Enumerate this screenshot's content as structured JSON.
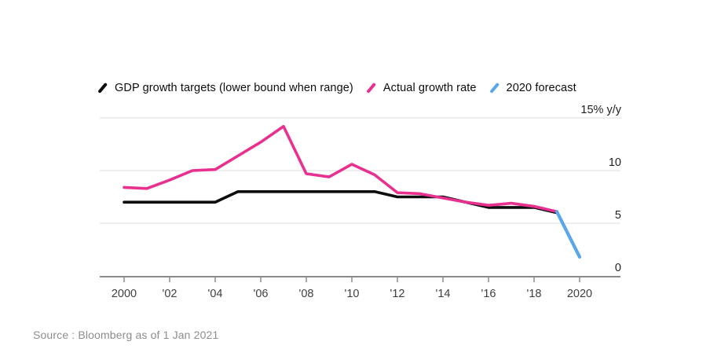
{
  "page": {
    "background": "#ffffff"
  },
  "legend": {
    "items": [
      {
        "key": "targets",
        "label": "GDP growth targets (lower bound when range)",
        "color": "#0d0d0d"
      },
      {
        "key": "actual",
        "label": "Actual growth rate",
        "color": "#e8308f"
      },
      {
        "key": "forecast",
        "label": "2020 forecast",
        "color": "#57a7ea"
      }
    ]
  },
  "chart_data": {
    "type": "line",
    "grid": "horizontal",
    "legend_position": "top",
    "xlim": [
      2000,
      2020
    ],
    "ylim": [
      0,
      15
    ],
    "ylabel": "% y/y",
    "y_ticks": [
      {
        "value": 15,
        "label": "15% y/y"
      },
      {
        "value": 10,
        "label": "10"
      },
      {
        "value": 5,
        "label": "5"
      },
      {
        "value": 0,
        "label": "0"
      }
    ],
    "x_ticks": [
      {
        "year": 2000,
        "label": "2000"
      },
      {
        "year": 2002,
        "label": "'02"
      },
      {
        "year": 2004,
        "label": "'04"
      },
      {
        "year": 2006,
        "label": "'06"
      },
      {
        "year": 2008,
        "label": "'08"
      },
      {
        "year": 2010,
        "label": "'10"
      },
      {
        "year": 2012,
        "label": "'12"
      },
      {
        "year": 2014,
        "label": "'14"
      },
      {
        "year": 2016,
        "label": "'16"
      },
      {
        "year": 2018,
        "label": "'18"
      },
      {
        "year": 2020,
        "label": "2020"
      }
    ],
    "series": [
      {
        "key": "targets",
        "name": "GDP growth targets (lower bound when range)",
        "color": "#0d0d0d",
        "width": 3.6,
        "x": [
          2000,
          2001,
          2002,
          2003,
          2004,
          2005,
          2006,
          2007,
          2008,
          2009,
          2010,
          2011,
          2012,
          2013,
          2014,
          2015,
          2016,
          2017,
          2018,
          2019
        ],
        "values": [
          7,
          7,
          7,
          7,
          7,
          8,
          8,
          8,
          8,
          8,
          8,
          8,
          7.5,
          7.5,
          7.5,
          7,
          6.5,
          6.5,
          6.5,
          6
        ]
      },
      {
        "key": "actual",
        "name": "Actual growth rate",
        "color": "#e8308f",
        "width": 3.6,
        "x": [
          2000,
          2001,
          2002,
          2003,
          2004,
          2005,
          2006,
          2007,
          2008,
          2009,
          2010,
          2011,
          2012,
          2013,
          2014,
          2015,
          2016,
          2017,
          2018,
          2019
        ],
        "values": [
          8.4,
          8.3,
          9.1,
          10.0,
          10.1,
          11.4,
          12.7,
          14.2,
          9.7,
          9.4,
          10.6,
          9.6,
          7.9,
          7.8,
          7.4,
          7.0,
          6.7,
          6.9,
          6.6,
          6.1
        ]
      },
      {
        "key": "forecast",
        "name": "2020 forecast",
        "color": "#57a7ea",
        "width": 4.2,
        "x": [
          2019,
          2020
        ],
        "values": [
          6.1,
          1.8
        ]
      }
    ]
  },
  "source": {
    "text": "Source : Bloomberg as of 1 Jan 2021"
  }
}
